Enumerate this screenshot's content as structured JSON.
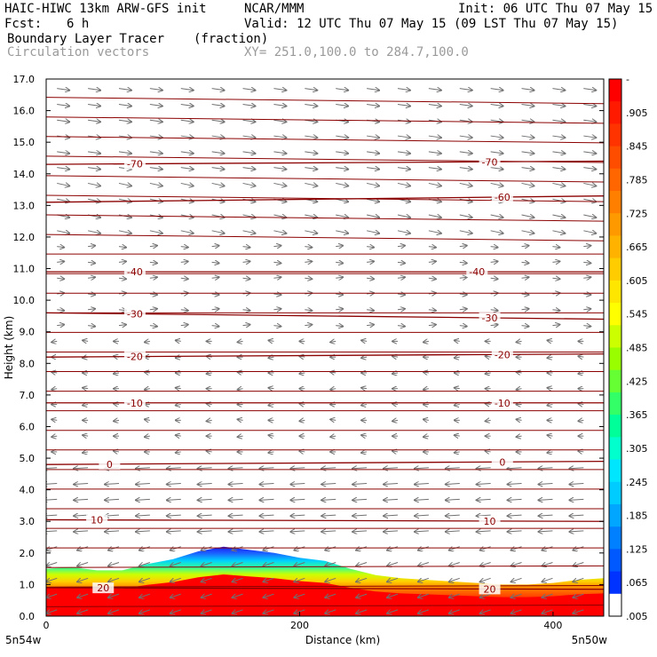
{
  "header": {
    "model_title": "HAIC-HIWC 13km ARW-GFS init",
    "org": "NCAR/MMM",
    "init": "Init: 06 UTC Thu 07 May 15",
    "fcst_label": "Fcst:",
    "fcst_value": "6 h",
    "valid": "Valid: 12 UTC Thu 07 May 15 (09 LST Thu 07 May 15)",
    "field1_name": "Boundary Layer Tracer",
    "field1_units": "(fraction)",
    "field2_name": "Circulation vectors",
    "xsection": "XY= 251.0,100.0 to 284.7,100.0"
  },
  "chart_data": {
    "type": "heatmap",
    "ylabel": "Height (km)",
    "xlabel": "Distance (km)",
    "ylim": [
      0,
      17
    ],
    "xlim": [
      0,
      440
    ],
    "yticks": [
      "0.0",
      "1.0",
      "2.0",
      "3.0",
      "4.0",
      "5.0",
      "6.0",
      "7.0",
      "8.0",
      "9.0",
      "10.0",
      "11.0",
      "12.0",
      "13.0",
      "14.0",
      "15.0",
      "16.0",
      "17.0"
    ],
    "xticks": [
      {
        "value": 0,
        "label": "0"
      },
      {
        "value": 200,
        "label": "200"
      },
      {
        "value": 400,
        "label": "400"
      }
    ],
    "x_endpoints": {
      "left": "5n54w",
      "right": "5n50w"
    },
    "tracer_top_km": [
      [
        0,
        1.5
      ],
      [
        20,
        1.55
      ],
      [
        40,
        1.45
      ],
      [
        60,
        1.45
      ],
      [
        80,
        1.65
      ],
      [
        100,
        1.8
      ],
      [
        120,
        2.05
      ],
      [
        140,
        2.2
      ],
      [
        160,
        2.1
      ],
      [
        180,
        2.0
      ],
      [
        200,
        1.85
      ],
      [
        220,
        1.75
      ],
      [
        240,
        1.5
      ],
      [
        260,
        1.3
      ],
      [
        280,
        1.2
      ],
      [
        300,
        1.15
      ],
      [
        320,
        1.1
      ],
      [
        340,
        1.05
      ],
      [
        360,
        1.0
      ],
      [
        380,
        1.0
      ],
      [
        400,
        1.05
      ],
      [
        420,
        1.15
      ],
      [
        440,
        1.2
      ]
    ],
    "contour_lines": [
      {
        "label": "-70",
        "label_x": [
          70,
          350
        ],
        "y": [
          14.3,
          14.4
        ]
      },
      {
        "label": "-60",
        "label_x": [
          360
        ],
        "y": [
          13.1,
          13.3
        ]
      },
      {
        "label": "-40",
        "label_x": [
          70,
          340
        ],
        "y": [
          10.9,
          10.9
        ]
      },
      {
        "label": "-30",
        "label_x": [
          70,
          350
        ],
        "y": [
          9.6,
          9.4
        ]
      },
      {
        "label": "-20",
        "label_x": [
          70,
          360
        ],
        "y": [
          8.2,
          8.3
        ]
      },
      {
        "label": "-10",
        "label_x": [
          70,
          360
        ],
        "y": [
          6.75,
          6.75
        ]
      },
      {
        "label": "0",
        "label_x": [
          50,
          360
        ],
        "y": [
          4.8,
          4.9
        ]
      },
      {
        "label": "10",
        "label_x": [
          40,
          350
        ],
        "y": [
          3.05,
          3.0
        ]
      },
      {
        "label": "20",
        "label_x": [
          45,
          350
        ],
        "y": [
          0.9,
          0.85
        ]
      }
    ],
    "colorbar": {
      "labels": [
        "-",
        ".905",
        ".845",
        ".785",
        ".725",
        ".665",
        ".605",
        ".545",
        ".485",
        ".425",
        ".365",
        ".305",
        ".245",
        ".185",
        ".125",
        ".065",
        ".005"
      ],
      "colors": [
        "#ff0000",
        "#ff1a00",
        "#ff3300",
        "#ff4d00",
        "#ff6600",
        "#ff8000",
        "#ff9900",
        "#ffb300",
        "#ffcc00",
        "#ffe600",
        "#ffff00",
        "#ccff00",
        "#99ff00",
        "#66ff33",
        "#33ff66",
        "#00ff99",
        "#00ffcc",
        "#00e6ff",
        "#00ccff",
        "#00a6ff",
        "#0080ff",
        "#0059ff",
        "#0033ff",
        "#ffffff"
      ]
    }
  }
}
